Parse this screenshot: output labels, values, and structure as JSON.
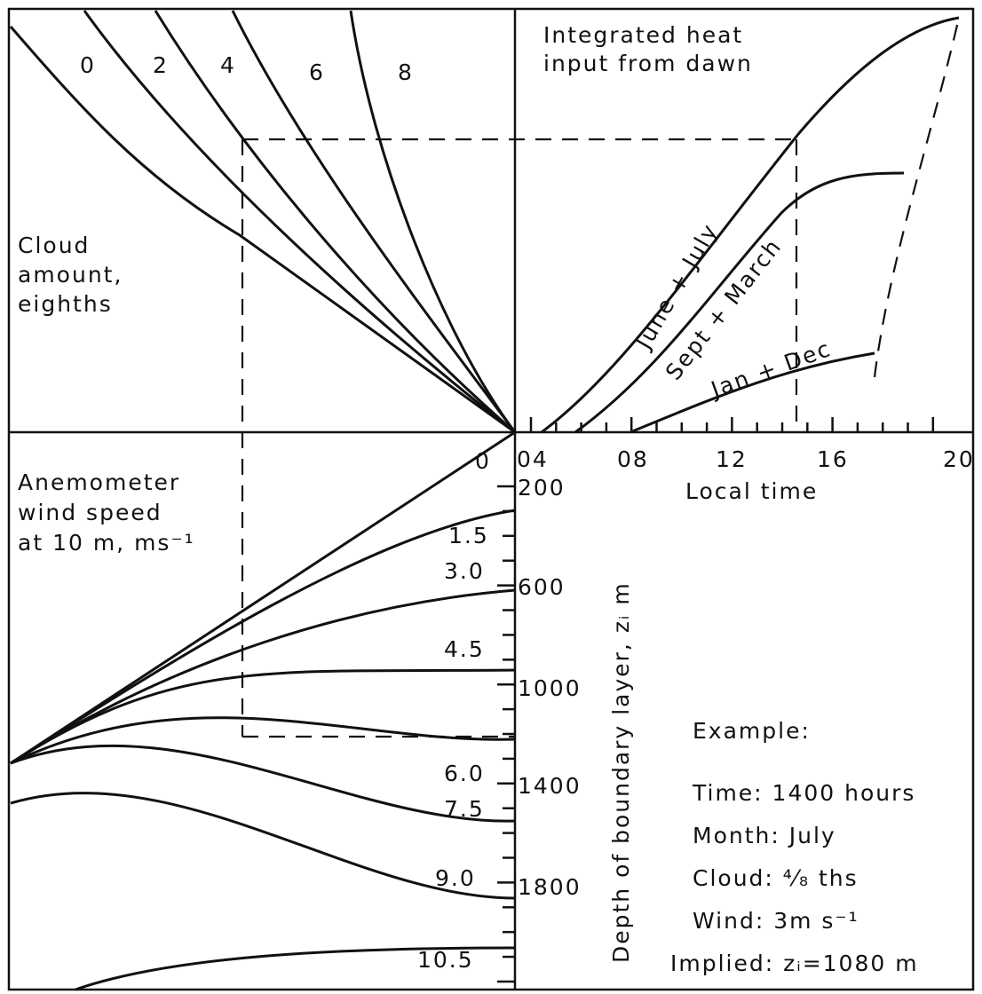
{
  "cloud": {
    "label_lines": [
      "Cloud",
      "amount,",
      "eighths"
    ],
    "curve_labels": [
      "0",
      "2",
      "4",
      "6",
      "8"
    ]
  },
  "heat": {
    "title_lines": [
      "Integrated heat",
      "input from dawn"
    ],
    "curve_labels": [
      "June + July",
      "Sept + March",
      "Jan + Dec"
    ]
  },
  "wind": {
    "label_lines": [
      "Anemometer",
      "wind speed",
      "at 10 m, ms⁻¹"
    ],
    "curve_labels": [
      "0",
      "1.5",
      "3.0",
      "4.5",
      "6.0",
      "7.5",
      "9.0",
      "10.5"
    ]
  },
  "time_axis": {
    "label": "Local time",
    "ticks": [
      "04",
      "08",
      "12",
      "16",
      "20"
    ]
  },
  "depth_axis": {
    "label": "Depth of boundary layer, zᵢ m",
    "ticks": [
      "200",
      "600",
      "1000",
      "1400",
      "1800"
    ]
  },
  "example": {
    "title": "Example:",
    "lines": [
      "Time: 1400 hours",
      "Month: July",
      "Cloud: ⁴⁄₈ ths",
      "Wind: 3m s⁻¹",
      "Implied: zᵢ=1080 m"
    ]
  }
}
